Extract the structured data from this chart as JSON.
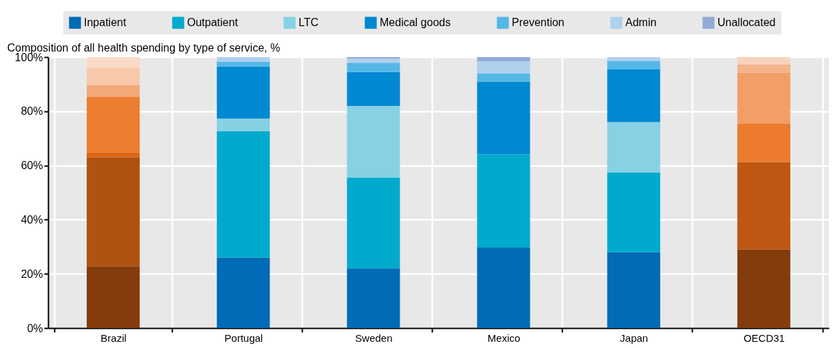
{
  "chart_data": {
    "type": "bar",
    "stacked": true,
    "ylabel": "Composition of all health spending by type of service, %",
    "categories": [
      "Brazil",
      "Portugal",
      "Sweden",
      "Mexico",
      "Japan",
      "OECD31"
    ],
    "series": [
      {
        "name": "Inpatient",
        "color": "#006bb6",
        "colors": [
          "#843c0c",
          "#006bb6",
          "#006bb6",
          "#006bb6",
          "#006bb6",
          "#843c0c"
        ],
        "values": [
          22.8,
          26.0,
          22.0,
          29.7,
          28.0,
          29.0
        ]
      },
      {
        "name": "Outpatient",
        "color": "#00aacc",
        "colors": [
          "#b05210",
          "#00aacc",
          "#00aacc",
          "#00aacc",
          "#00aacc",
          "#bf5712"
        ],
        "values": [
          40.3,
          46.6,
          33.5,
          34.4,
          29.4,
          32.3
        ]
      },
      {
        "name": "LTC",
        "color": "#86d1e4",
        "colors": [
          "#e06510",
          "#86d1e4",
          "#86d1e4",
          "#86d1e4",
          "#86d1e4",
          "#ec7a2e"
        ],
        "values": [
          1.7,
          4.7,
          26.5,
          null,
          18.6,
          14.1
        ]
      },
      {
        "name": "Medical goods",
        "color": "#0088d1",
        "colors": [
          "#ed7d31",
          "#0088d1",
          "#0088d1",
          "#0088d1",
          "#0088d1",
          "#f29e66"
        ],
        "values": [
          20.5,
          19.2,
          12.5,
          26.8,
          19.4,
          18.8
        ]
      },
      {
        "name": "Prevention",
        "color": "#55b7e6",
        "colors": [
          "#f4a978",
          "#55b7e6",
          "#55b7e6",
          "#55b7e6",
          "#55b7e6",
          "#f4b48a"
        ],
        "values": [
          4.4,
          1.8,
          3.4,
          3.0,
          3.1,
          3.0
        ]
      },
      {
        "name": "Admin",
        "color": "#b0d0ee",
        "colors": [
          "#f8c9ab",
          "#b0d0ee",
          "#b0d0ee",
          "#b0d0ee",
          "#b0d0ee",
          "#f8d3bc"
        ],
        "values": [
          6.4,
          1.7,
          1.5,
          4.6,
          1.5,
          2.8
        ]
      },
      {
        "name": "Unallocated",
        "color": "#93aad6",
        "colors": [
          "#fadac7",
          "#93aad6",
          "#93aad6",
          "#93aad6",
          "#93aad6",
          "#93aad6"
        ],
        "values": [
          3.9,
          null,
          0.6,
          1.5,
          null,
          null
        ]
      }
    ],
    "ylim": [
      0,
      100
    ],
    "yticks": [
      {
        "value": 0,
        "label": "0%"
      },
      {
        "value": 20,
        "label": "20%"
      },
      {
        "value": 40,
        "label": "40%"
      },
      {
        "value": 60,
        "label": "60%"
      },
      {
        "value": 80,
        "label": "80%"
      },
      {
        "value": 100,
        "label": "100%"
      }
    ],
    "grid": true,
    "legend": "top"
  }
}
